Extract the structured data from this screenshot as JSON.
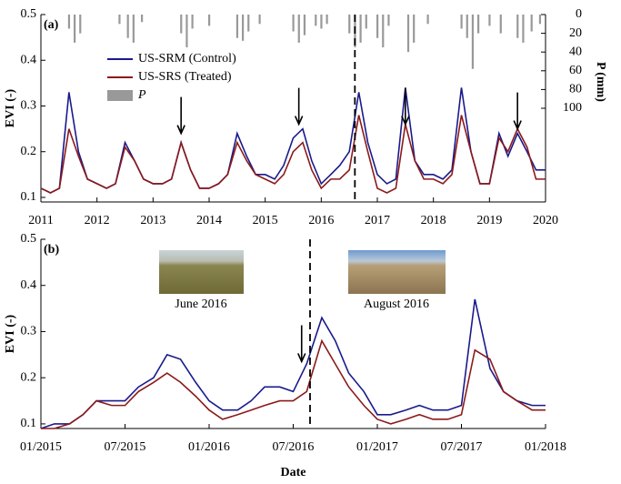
{
  "chart_data": [
    {
      "type": "line",
      "panel_label": "(a)",
      "ylabel": "EVI (-)",
      "y2label": "P (mm)",
      "xlim": [
        2011,
        2020
      ],
      "xticks": [
        2011,
        2012,
        2013,
        2014,
        2015,
        2016,
        2017,
        2018,
        2019,
        2020
      ],
      "ylim": [
        0.09,
        0.5
      ],
      "yticks": [
        0.1,
        0.2,
        0.3,
        0.4,
        0.5
      ],
      "y2lim": [
        200,
        0
      ],
      "y2ticks": [
        0,
        20,
        40,
        60,
        80,
        100
      ],
      "treatment_x": 2016.6,
      "arrows": [
        {
          "x": 2013.5,
          "y": 0.24
        },
        {
          "x": 2015.6,
          "y": 0.26
        },
        {
          "x": 2017.5,
          "y": 0.26
        },
        {
          "x": 2019.5,
          "y": 0.25
        }
      ],
      "x": [
        2011.0,
        2011.17,
        2011.33,
        2011.5,
        2011.67,
        2011.83,
        2012.0,
        2012.17,
        2012.33,
        2012.5,
        2012.67,
        2012.83,
        2013.0,
        2013.17,
        2013.33,
        2013.5,
        2013.67,
        2013.83,
        2014.0,
        2014.17,
        2014.33,
        2014.5,
        2014.67,
        2014.83,
        2015.0,
        2015.17,
        2015.33,
        2015.5,
        2015.67,
        2015.83,
        2016.0,
        2016.17,
        2016.33,
        2016.5,
        2016.67,
        2016.83,
        2017.0,
        2017.17,
        2017.33,
        2017.5,
        2017.67,
        2017.83,
        2018.0,
        2018.17,
        2018.33,
        2018.5,
        2018.67,
        2018.83,
        2019.0,
        2019.17,
        2019.33,
        2019.5,
        2019.67,
        2019.83,
        2020.0
      ],
      "series": [
        {
          "name": "US-SRM (Control)",
          "color": "#1a1a8c",
          "values": [
            0.12,
            0.11,
            0.12,
            0.33,
            0.2,
            0.14,
            0.13,
            0.12,
            0.13,
            0.22,
            0.18,
            0.14,
            0.13,
            0.13,
            0.14,
            0.22,
            0.16,
            0.12,
            0.12,
            0.13,
            0.15,
            0.24,
            0.19,
            0.15,
            0.15,
            0.14,
            0.17,
            0.23,
            0.25,
            0.18,
            0.13,
            0.15,
            0.17,
            0.2,
            0.33,
            0.22,
            0.15,
            0.13,
            0.14,
            0.34,
            0.18,
            0.15,
            0.15,
            0.14,
            0.16,
            0.34,
            0.2,
            0.13,
            0.13,
            0.24,
            0.19,
            0.24,
            0.2,
            0.16,
            0.16
          ]
        },
        {
          "name": "US-SRS (Treated)",
          "color": "#8b1a1a",
          "values": [
            0.12,
            0.11,
            0.12,
            0.25,
            0.19,
            0.14,
            0.13,
            0.12,
            0.13,
            0.21,
            0.18,
            0.14,
            0.13,
            0.13,
            0.14,
            0.22,
            0.16,
            0.12,
            0.12,
            0.13,
            0.15,
            0.22,
            0.18,
            0.15,
            0.14,
            0.13,
            0.15,
            0.2,
            0.22,
            0.16,
            0.12,
            0.14,
            0.14,
            0.16,
            0.28,
            0.2,
            0.12,
            0.11,
            0.12,
            0.26,
            0.18,
            0.14,
            0.14,
            0.13,
            0.15,
            0.28,
            0.2,
            0.13,
            0.13,
            0.23,
            0.2,
            0.25,
            0.21,
            0.14,
            0.14
          ]
        },
        {
          "name": "P",
          "type": "bar",
          "axis": "y2",
          "color": "#999999",
          "x": [
            2011.5,
            2011.6,
            2011.7,
            2012.4,
            2012.55,
            2012.65,
            2012.8,
            2013.5,
            2013.6,
            2013.7,
            2014.0,
            2014.5,
            2014.6,
            2014.7,
            2014.9,
            2015.5,
            2015.6,
            2015.7,
            2015.9,
            2016.0,
            2016.1,
            2016.5,
            2016.6,
            2016.7,
            2016.8,
            2017.0,
            2017.1,
            2017.2,
            2017.55,
            2017.65,
            2017.9,
            2018.5,
            2018.6,
            2018.7,
            2018.8,
            2019.0,
            2019.2,
            2019.5,
            2019.6,
            2019.75,
            2019.9
          ],
          "values": [
            15,
            30,
            20,
            10,
            25,
            30,
            8,
            20,
            35,
            15,
            12,
            25,
            28,
            18,
            10,
            18,
            30,
            22,
            12,
            15,
            10,
            20,
            35,
            30,
            15,
            25,
            35,
            12,
            40,
            30,
            10,
            15,
            25,
            58,
            20,
            12,
            20,
            25,
            30,
            18,
            10
          ]
        }
      ]
    },
    {
      "type": "line",
      "panel_label": "(b)",
      "ylabel": "EVI (-)",
      "xlabel": "Date",
      "xlim": [
        2015,
        2018
      ],
      "xticks": [
        {
          "value": 2015,
          "label": "01/2015"
        },
        {
          "value": 2015.5,
          "label": "07/2015"
        },
        {
          "value": 2016,
          "label": "01/2016"
        },
        {
          "value": 2016.5,
          "label": "07/2016"
        },
        {
          "value": 2017,
          "label": "01/2017"
        },
        {
          "value": 2017.5,
          "label": "07/2017"
        },
        {
          "value": 2018,
          "label": "01/2018"
        }
      ],
      "ylim": [
        0.09,
        0.5
      ],
      "yticks": [
        0.1,
        0.2,
        0.3,
        0.4,
        0.5
      ],
      "treatment_x": 2016.6,
      "arrows": [
        {
          "x": 2016.55,
          "y": 0.235
        }
      ],
      "photos": [
        "June 2016",
        "August 2016"
      ],
      "x": [
        2015.0,
        2015.08,
        2015.17,
        2015.25,
        2015.33,
        2015.42,
        2015.5,
        2015.58,
        2015.67,
        2015.75,
        2015.83,
        2015.92,
        2016.0,
        2016.08,
        2016.17,
        2016.25,
        2016.33,
        2016.42,
        2016.5,
        2016.58,
        2016.67,
        2016.75,
        2016.83,
        2016.92,
        2017.0,
        2017.08,
        2017.17,
        2017.25,
        2017.33,
        2017.42,
        2017.5,
        2017.58,
        2017.67,
        2017.75,
        2017.83,
        2017.92,
        2018.0
      ],
      "series": [
        {
          "name": "US-SRM (Control)",
          "color": "#1a1a8c",
          "values": [
            0.09,
            0.1,
            0.1,
            0.12,
            0.15,
            0.15,
            0.15,
            0.18,
            0.2,
            0.25,
            0.24,
            0.19,
            0.15,
            0.13,
            0.13,
            0.15,
            0.18,
            0.18,
            0.17,
            0.23,
            0.33,
            0.28,
            0.21,
            0.17,
            0.12,
            0.12,
            0.13,
            0.14,
            0.13,
            0.13,
            0.14,
            0.37,
            0.22,
            0.17,
            0.15,
            0.14,
            0.14
          ]
        },
        {
          "name": "US-SRS (Treated)",
          "color": "#8b1a1a",
          "values": [
            0.09,
            0.09,
            0.1,
            0.12,
            0.15,
            0.14,
            0.14,
            0.17,
            0.19,
            0.21,
            0.19,
            0.16,
            0.13,
            0.11,
            0.12,
            0.13,
            0.14,
            0.15,
            0.15,
            0.17,
            0.28,
            0.23,
            0.18,
            0.14,
            0.11,
            0.1,
            0.11,
            0.12,
            0.11,
            0.11,
            0.12,
            0.26,
            0.24,
            0.17,
            0.15,
            0.13,
            0.13
          ]
        }
      ]
    }
  ]
}
